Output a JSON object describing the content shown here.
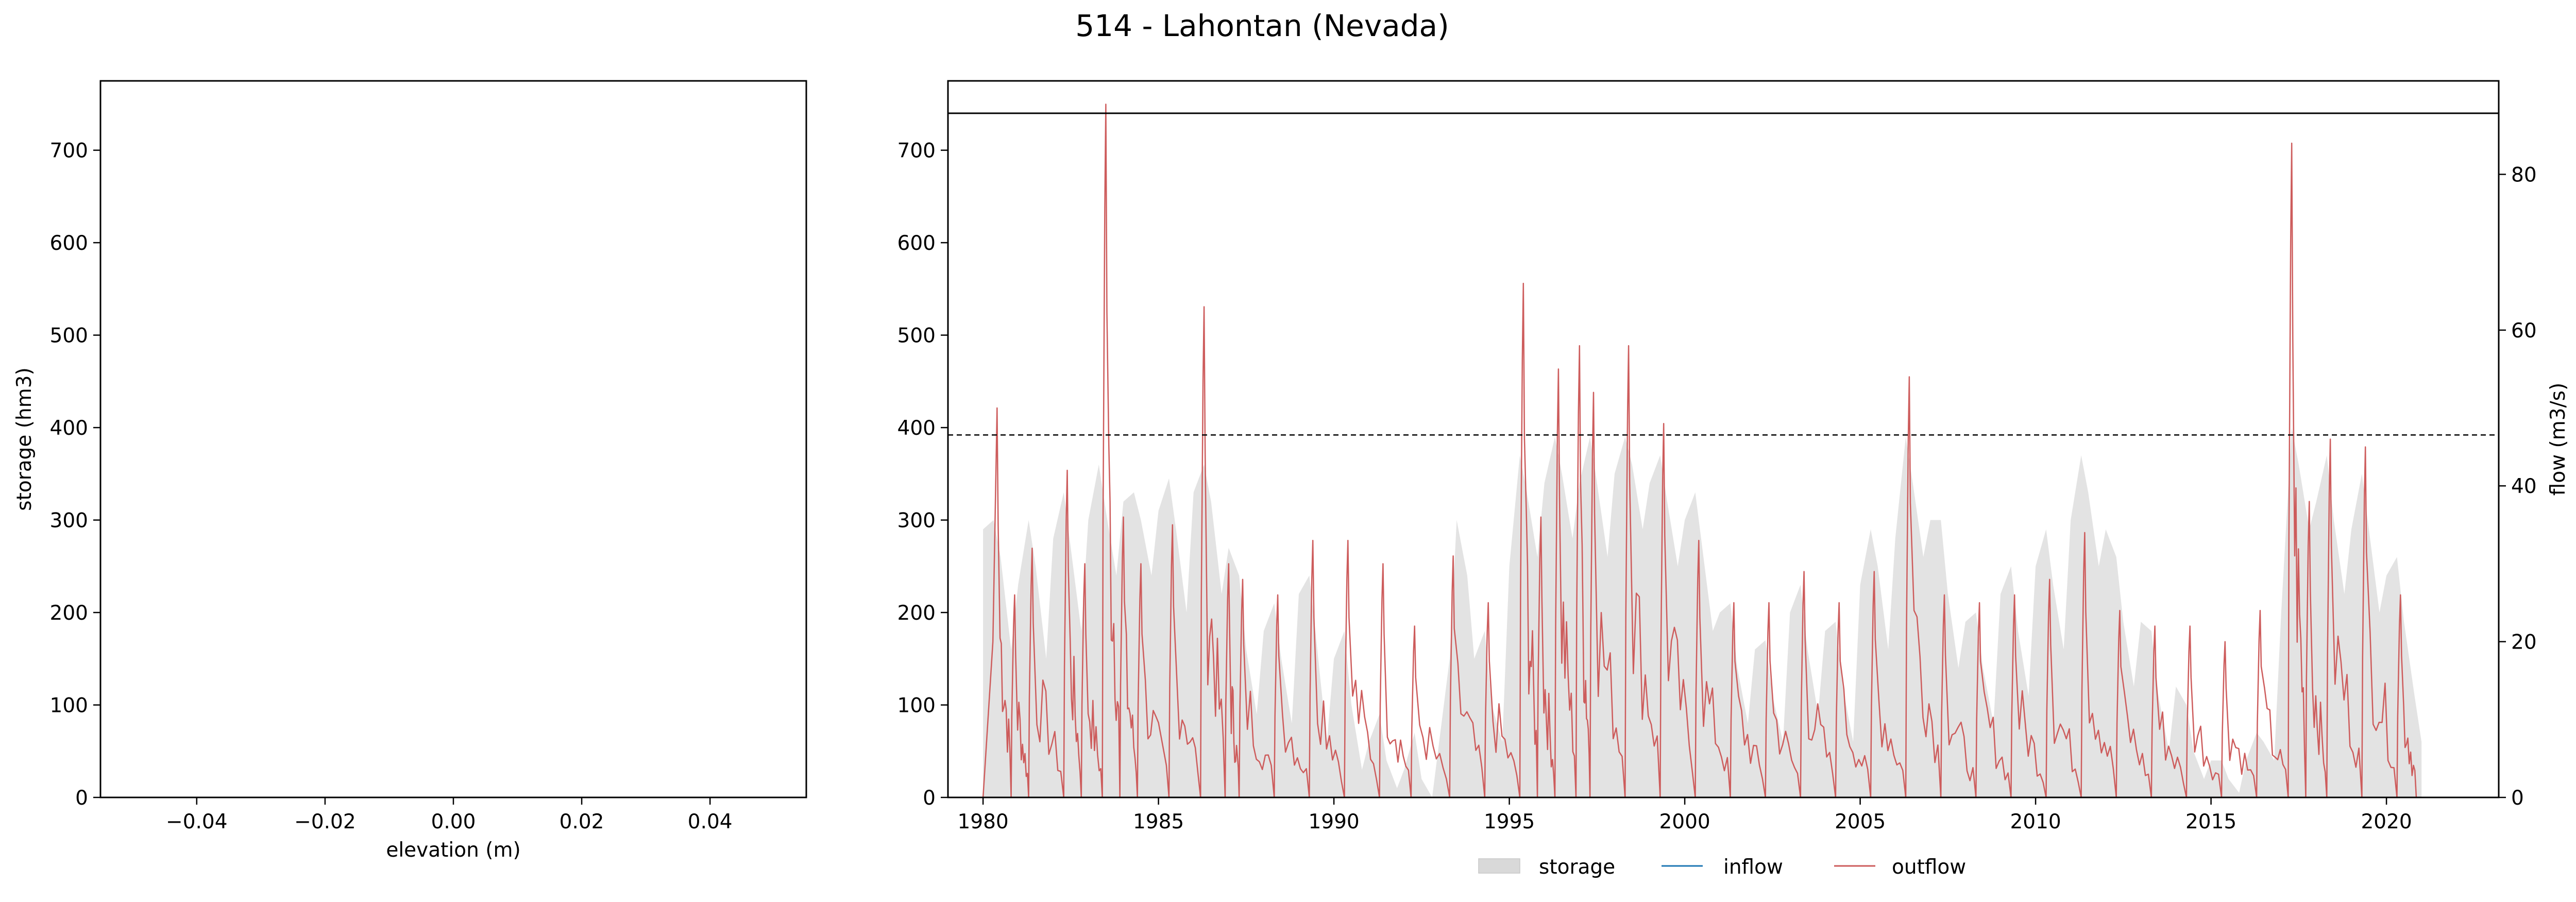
{
  "title": "514 - Lahontan (Nevada)",
  "chart_data": [
    {
      "type": "line",
      "panel": "left",
      "xlabel": "elevation (m)",
      "ylabel": "storage (hm3)",
      "xlim": [
        -0.055,
        0.055
      ],
      "ylim": [
        0,
        775
      ],
      "xticks": [
        "−0.04",
        "−0.02",
        "0.00",
        "0.02",
        "0.04"
      ],
      "xtick_values": [
        -0.04,
        -0.02,
        0.0,
        0.02,
        0.04
      ],
      "yticks": [
        0,
        100,
        200,
        300,
        400,
        500,
        600,
        700
      ],
      "series": []
    },
    {
      "type": "area",
      "panel": "right",
      "ylabel_right": "flow (m3/s)",
      "xlim": [
        1979.0,
        2023.2
      ],
      "ylim_left": [
        0,
        775
      ],
      "ylim_right": [
        0,
        92
      ],
      "xticks": [
        1980,
        1985,
        1990,
        1995,
        2000,
        2005,
        2010,
        2015,
        2020
      ],
      "yticks_left": [
        0,
        100,
        200,
        300,
        400,
        500,
        600,
        700
      ],
      "yticks_right": [
        0,
        20,
        40,
        60,
        80
      ],
      "reference_lines": [
        {
          "style": "solid",
          "axis": "storage",
          "value": 740
        },
        {
          "style": "dashed",
          "axis": "storage",
          "value": 392
        }
      ],
      "legend": {
        "placement": "bottom-center",
        "entries": [
          "storage",
          "inflow",
          "outflow"
        ]
      },
      "colors": {
        "storage": "#d9d9d9",
        "inflow": "#1f77b4",
        "outflow": "#cd5c5c"
      },
      "storage_series": {
        "name": "storage",
        "years": [
          1980.0,
          1980.3,
          1980.5,
          1980.8,
          1981.0,
          1981.3,
          1981.5,
          1981.8,
          1982.0,
          1982.3,
          1982.5,
          1982.8,
          1983.0,
          1983.3,
          1983.5,
          1983.8,
          1984.0,
          1984.3,
          1984.5,
          1984.8,
          1985.0,
          1985.3,
          1985.5,
          1985.8,
          1986.0,
          1986.3,
          1986.5,
          1986.8,
          1987.0,
          1987.3,
          1987.5,
          1987.8,
          1988.0,
          1988.3,
          1988.5,
          1988.8,
          1989.0,
          1989.3,
          1989.5,
          1989.8,
          1990.0,
          1990.3,
          1990.5,
          1990.8,
          1991.0,
          1991.3,
          1991.5,
          1991.8,
          1992.0,
          1992.3,
          1992.5,
          1992.8,
          1993.0,
          1993.3,
          1993.5,
          1993.8,
          1994.0,
          1994.3,
          1994.5,
          1994.8,
          1995.0,
          1995.3,
          1995.5,
          1995.8,
          1996.0,
          1996.3,
          1996.5,
          1996.8,
          1997.0,
          1997.3,
          1997.5,
          1997.8,
          1998.0,
          1998.3,
          1998.5,
          1998.8,
          1999.0,
          1999.3,
          1999.5,
          1999.8,
          2000.0,
          2000.3,
          2000.5,
          2000.8,
          2001.0,
          2001.3,
          2001.5,
          2001.8,
          2002.0,
          2002.3,
          2002.5,
          2002.8,
          2003.0,
          2003.3,
          2003.5,
          2003.8,
          2004.0,
          2004.3,
          2004.5,
          2004.8,
          2005.0,
          2005.3,
          2005.5,
          2005.8,
          2006.0,
          2006.3,
          2006.5,
          2006.8,
          2007.0,
          2007.3,
          2007.5,
          2007.8,
          2008.0,
          2008.3,
          2008.5,
          2008.8,
          2009.0,
          2009.3,
          2009.5,
          2009.8,
          2010.0,
          2010.3,
          2010.5,
          2010.8,
          2011.0,
          2011.3,
          2011.5,
          2011.8,
          2012.0,
          2012.3,
          2012.5,
          2012.8,
          2013.0,
          2013.3,
          2013.5,
          2013.8,
          2014.0,
          2014.3,
          2014.5,
          2014.8,
          2015.0,
          2015.3,
          2015.5,
          2015.8,
          2016.0,
          2016.3,
          2016.5,
          2016.8,
          2017.0,
          2017.3,
          2017.5,
          2017.8,
          2018.0,
          2018.3,
          2018.5,
          2018.8,
          2019.0,
          2019.3,
          2019.5,
          2019.8,
          2020.0,
          2020.3,
          2020.5,
          2020.8,
          2021.0
        ],
        "values": [
          290,
          300,
          260,
          160,
          230,
          300,
          250,
          150,
          280,
          330,
          270,
          180,
          300,
          360,
          310,
          240,
          320,
          330,
          300,
          240,
          310,
          345,
          290,
          200,
          330,
          360,
          320,
          220,
          270,
          240,
          160,
          90,
          180,
          210,
          150,
          80,
          220,
          240,
          170,
          60,
          150,
          180,
          100,
          30,
          60,
          90,
          40,
          10,
          30,
          70,
          20,
          0,
          60,
          150,
          300,
          240,
          150,
          180,
          100,
          60,
          250,
          370,
          330,
          260,
          340,
          390,
          350,
          280,
          340,
          390,
          340,
          260,
          350,
          390,
          360,
          290,
          340,
          370,
          320,
          250,
          300,
          330,
          270,
          180,
          200,
          210,
          140,
          80,
          160,
          170,
          110,
          60,
          200,
          230,
          160,
          90,
          180,
          190,
          120,
          60,
          230,
          290,
          250,
          160,
          280,
          390,
          340,
          260,
          300,
          300,
          220,
          140,
          190,
          200,
          140,
          80,
          220,
          250,
          180,
          110,
          250,
          290,
          230,
          160,
          300,
          370,
          330,
          250,
          290,
          260,
          190,
          120,
          190,
          180,
          110,
          50,
          120,
          100,
          50,
          20,
          40,
          40,
          20,
          5,
          40,
          70,
          60,
          40,
          200,
          400,
          360,
          290,
          320,
          370,
          300,
          220,
          290,
          350,
          290,
          200,
          240,
          260,
          190,
          110,
          60
        ]
      },
      "outflow_series": {
        "name": "outflow",
        "peaks": [
          {
            "year": 1980.4,
            "value": 50
          },
          {
            "year": 1980.9,
            "value": 26
          },
          {
            "year": 1981.4,
            "value": 32
          },
          {
            "year": 1982.4,
            "value": 42
          },
          {
            "year": 1982.9,
            "value": 30
          },
          {
            "year": 1983.5,
            "value": 89
          },
          {
            "year": 1984.0,
            "value": 36
          },
          {
            "year": 1984.5,
            "value": 30
          },
          {
            "year": 1985.4,
            "value": 35
          },
          {
            "year": 1986.3,
            "value": 63
          },
          {
            "year": 1987.0,
            "value": 30
          },
          {
            "year": 1987.4,
            "value": 28
          },
          {
            "year": 1988.4,
            "value": 26
          },
          {
            "year": 1989.4,
            "value": 33
          },
          {
            "year": 1990.4,
            "value": 33
          },
          {
            "year": 1991.4,
            "value": 30
          },
          {
            "year": 1992.3,
            "value": 22
          },
          {
            "year": 1993.4,
            "value": 31
          },
          {
            "year": 1994.4,
            "value": 25
          },
          {
            "year": 1995.4,
            "value": 66
          },
          {
            "year": 1995.9,
            "value": 36
          },
          {
            "year": 1996.4,
            "value": 55
          },
          {
            "year": 1997.0,
            "value": 58
          },
          {
            "year": 1997.4,
            "value": 52
          },
          {
            "year": 1998.4,
            "value": 58
          },
          {
            "year": 1999.4,
            "value": 48
          },
          {
            "year": 2000.4,
            "value": 33
          },
          {
            "year": 2001.4,
            "value": 25
          },
          {
            "year": 2002.4,
            "value": 25
          },
          {
            "year": 2003.4,
            "value": 29
          },
          {
            "year": 2004.4,
            "value": 25
          },
          {
            "year": 2005.4,
            "value": 29
          },
          {
            "year": 2006.4,
            "value": 54
          },
          {
            "year": 2007.4,
            "value": 26
          },
          {
            "year": 2008.4,
            "value": 25
          },
          {
            "year": 2009.4,
            "value": 26
          },
          {
            "year": 2010.4,
            "value": 28
          },
          {
            "year": 2011.4,
            "value": 34
          },
          {
            "year": 2012.4,
            "value": 24
          },
          {
            "year": 2013.4,
            "value": 22
          },
          {
            "year": 2014.4,
            "value": 22
          },
          {
            "year": 2015.4,
            "value": 20
          },
          {
            "year": 2016.4,
            "value": 24
          },
          {
            "year": 2017.3,
            "value": 84
          },
          {
            "year": 2017.8,
            "value": 38
          },
          {
            "year": 2018.4,
            "value": 46
          },
          {
            "year": 2019.4,
            "value": 45
          },
          {
            "year": 2020.4,
            "value": 26
          }
        ]
      },
      "inflow_series": {
        "name": "inflow",
        "values": []
      }
    }
  ]
}
